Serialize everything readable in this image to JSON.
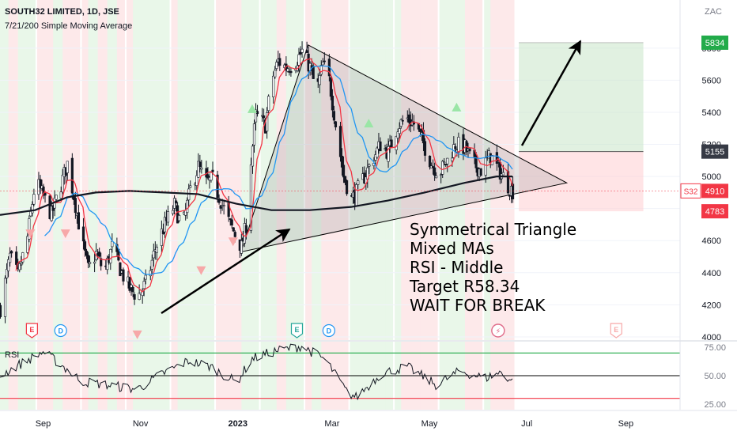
{
  "header": {
    "symbol_line": "SOUTH32 LIMITED, 1D, JSE",
    "ma_line": "7/21/200 Simple Moving Average"
  },
  "note": {
    "lines": [
      "Symmetrical Triangle",
      "Mixed MAs",
      "RSI - Middle",
      "Target R58.34",
      "WAIT FOR BREAK"
    ]
  },
  "chart_data": {
    "type": "candlestick",
    "currency_label": "ZAC",
    "x_tick_labels": [
      "Sep",
      "Nov",
      "2023",
      "Mar",
      "May",
      "Jul",
      "Sep"
    ],
    "x_tick_dates": [
      "2022-09-01",
      "2022-11-01",
      "2023-01-01",
      "2023-03-01",
      "2023-05-01",
      "2023-07-01",
      "2023-09-01"
    ],
    "x_range": [
      "2022-08-05",
      "2023-10-05"
    ],
    "y_ticks": [
      4000,
      4200,
      4400,
      4600,
      4800,
      5000,
      5200,
      5400,
      5600,
      5800
    ],
    "ylim": [
      3980,
      6100
    ],
    "price_labels": [
      {
        "value": 5834,
        "text": "5834",
        "color": "#22ab4a"
      },
      {
        "value": 5155,
        "text": "5155",
        "color": "#363a45"
      },
      {
        "value": 4910,
        "text": "4910",
        "color": "#f23645",
        "tag": "S32"
      },
      {
        "value": 4783,
        "text": "4783",
        "color": "#f23645"
      }
    ],
    "series_path": [
      [
        "2022-08-05",
        4180
      ],
      [
        "2022-08-11",
        4500
      ],
      [
        "2022-08-16",
        4380
      ],
      [
        "2022-08-22",
        4620
      ],
      [
        "2022-08-27",
        4980
      ],
      [
        "2022-09-02",
        4850
      ],
      [
        "2022-09-06",
        4760
      ],
      [
        "2022-09-12",
        4950
      ],
      [
        "2022-09-16",
        5080
      ],
      [
        "2022-09-20",
        4880
      ],
      [
        "2022-09-25",
        4600
      ],
      [
        "2022-09-29",
        4420
      ],
      [
        "2022-10-04",
        4520
      ],
      [
        "2022-10-09",
        4400
      ],
      [
        "2022-10-14",
        4560
      ],
      [
        "2022-10-20",
        4400
      ],
      [
        "2022-10-25",
        4300
      ],
      [
        "2022-10-30",
        4250
      ],
      [
        "2022-11-05",
        4350
      ],
      [
        "2022-11-10",
        4550
      ],
      [
        "2022-11-16",
        4700
      ],
      [
        "2022-11-22",
        4820
      ],
      [
        "2022-11-27",
        4680
      ],
      [
        "2022-12-02",
        4920
      ],
      [
        "2022-12-07",
        5060
      ],
      [
        "2022-12-12",
        4960
      ],
      [
        "2022-12-16",
        4980
      ],
      [
        "2022-12-21",
        4850
      ],
      [
        "2022-12-26",
        4720
      ],
      [
        "2022-12-31",
        4620
      ],
      [
        "2023-01-03",
        4560
      ],
      [
        "2023-01-06",
        4700
      ],
      [
        "2023-01-09",
        5100
      ],
      [
        "2023-01-12",
        5380
      ],
      [
        "2023-01-18",
        5320
      ],
      [
        "2023-01-22",
        5600
      ],
      [
        "2023-01-26",
        5720
      ],
      [
        "2023-01-31",
        5680
      ],
      [
        "2023-02-05",
        5700
      ],
      [
        "2023-02-10",
        5780
      ],
      [
        "2023-02-15",
        5680
      ],
      [
        "2023-02-19",
        5520
      ],
      [
        "2023-02-23",
        5700
      ],
      [
        "2023-02-27",
        5600
      ],
      [
        "2023-03-04",
        5260
      ],
      [
        "2023-03-08",
        5000
      ],
      [
        "2023-03-13",
        4860
      ],
      [
        "2023-03-16",
        4900
      ],
      [
        "2023-03-21",
        5000
      ],
      [
        "2023-03-26",
        5100
      ],
      [
        "2023-03-31",
        5200
      ],
      [
        "2023-04-05",
        5150
      ],
      [
        "2023-04-11",
        5320
      ],
      [
        "2023-04-17",
        5360
      ],
      [
        "2023-04-22",
        5320
      ],
      [
        "2023-04-28",
        5180
      ],
      [
        "2023-05-02",
        5080
      ],
      [
        "2023-05-07",
        5020
      ],
      [
        "2023-05-12",
        5100
      ],
      [
        "2023-05-17",
        5200
      ],
      [
        "2023-05-23",
        5180
      ],
      [
        "2023-05-28",
        5080
      ],
      [
        "2023-06-02",
        5040
      ],
      [
        "2023-06-08",
        5130
      ],
      [
        "2023-06-12",
        5060
      ],
      [
        "2023-06-16",
        5000
      ],
      [
        "2023-06-20",
        4930
      ],
      [
        "2023-06-22",
        4910
      ]
    ],
    "sma_200": [
      [
        "2022-08-05",
        4760
      ],
      [
        "2022-08-27",
        4790
      ],
      [
        "2022-09-16",
        4870
      ],
      [
        "2022-10-04",
        4900
      ],
      [
        "2022-10-25",
        4910
      ],
      [
        "2022-11-16",
        4900
      ],
      [
        "2022-12-07",
        4890
      ],
      [
        "2022-12-31",
        4830
      ],
      [
        "2023-01-22",
        4790
      ],
      [
        "2023-02-15",
        4790
      ],
      [
        "2023-03-13",
        4810
      ],
      [
        "2023-04-05",
        4850
      ],
      [
        "2023-04-28",
        4900
      ],
      [
        "2023-05-23",
        4960
      ],
      [
        "2023-06-12",
        5000
      ],
      [
        "2023-06-22",
        5000
      ]
    ],
    "triangle": {
      "apex_top": [
        "2023-02-14",
        5820
      ],
      "apex_bottom": [
        "2023-01-03",
        4530
      ],
      "apex_right": [
        "2023-07-26",
        4960
      ]
    },
    "target_box": {
      "from": "2023-06-26",
      "to": "2023-09-12",
      "top": 5834,
      "mid": 5155,
      "bottom": 4783
    },
    "event_markers": [
      {
        "date": "2022-08-25",
        "label": "E"
      },
      {
        "date": "2022-09-12",
        "label": "D"
      },
      {
        "date": "2023-02-07",
        "label": "E"
      },
      {
        "date": "2023-02-27",
        "label": "D"
      },
      {
        "date": "2023-06-13",
        "label": "⚡"
      },
      {
        "date": "2023-08-26",
        "label": "E"
      }
    ],
    "rsi": {
      "label": "RSI",
      "y_ticks": [
        25,
        50,
        75
      ],
      "ylim": [
        20,
        80
      ],
      "levels": [
        70,
        50,
        30
      ],
      "values": [
        [
          "2022-08-05",
          50
        ],
        [
          "2022-08-20",
          62
        ],
        [
          "2022-09-01",
          71
        ],
        [
          "2022-09-12",
          60
        ],
        [
          "2022-09-25",
          45
        ],
        [
          "2022-10-10",
          42
        ],
        [
          "2022-10-30",
          38
        ],
        [
          "2022-11-15",
          52
        ],
        [
          "2022-12-01",
          63
        ],
        [
          "2022-12-15",
          58
        ],
        [
          "2022-12-31",
          44
        ],
        [
          "2023-01-10",
          65
        ],
        [
          "2023-01-25",
          72
        ],
        [
          "2023-02-10",
          76
        ],
        [
          "2023-02-25",
          64
        ],
        [
          "2023-03-10",
          36
        ],
        [
          "2023-03-16",
          31
        ],
        [
          "2023-04-01",
          52
        ],
        [
          "2023-04-17",
          58
        ],
        [
          "2023-05-05",
          42
        ],
        [
          "2023-05-20",
          54
        ],
        [
          "2023-06-05",
          48
        ],
        [
          "2023-06-15",
          53
        ],
        [
          "2023-06-22",
          45
        ]
      ]
    }
  }
}
